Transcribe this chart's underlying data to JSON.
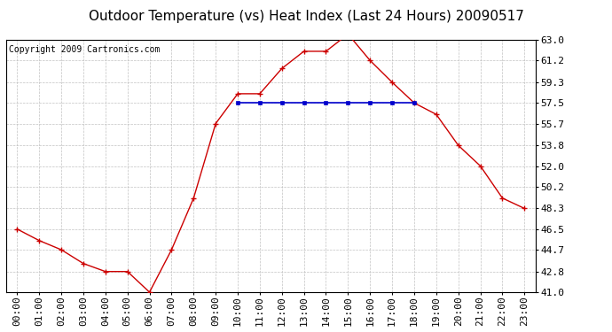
{
  "title": "Outdoor Temperature (vs) Heat Index (Last 24 Hours) 20090517",
  "copyright": "Copyright 2009 Cartronics.com",
  "hours": [
    "00:00",
    "01:00",
    "02:00",
    "03:00",
    "04:00",
    "05:00",
    "06:00",
    "07:00",
    "08:00",
    "09:00",
    "10:00",
    "11:00",
    "12:00",
    "13:00",
    "14:00",
    "15:00",
    "16:00",
    "17:00",
    "18:00",
    "19:00",
    "20:00",
    "21:00",
    "22:00",
    "23:00"
  ],
  "temp": [
    46.5,
    45.5,
    44.7,
    43.5,
    42.8,
    42.8,
    41.0,
    44.7,
    49.2,
    55.7,
    58.3,
    58.3,
    60.5,
    62.0,
    62.0,
    63.5,
    61.2,
    59.3,
    57.5,
    56.5,
    53.8,
    52.0,
    49.2,
    48.3
  ],
  "heat_index": [
    null,
    null,
    null,
    null,
    null,
    null,
    null,
    null,
    null,
    null,
    57.5,
    57.5,
    57.5,
    57.5,
    57.5,
    57.5,
    57.5,
    57.5,
    57.5,
    null,
    null,
    null,
    null,
    null
  ],
  "temp_color": "#cc0000",
  "heat_color": "#0000cc",
  "bg_color": "#ffffff",
  "plot_bg": "#ffffff",
  "grid_color": "#bbbbbb",
  "ylim": [
    41.0,
    63.0
  ],
  "yticks": [
    41.0,
    42.8,
    44.7,
    46.5,
    48.3,
    50.2,
    52.0,
    53.8,
    55.7,
    57.5,
    59.3,
    61.2,
    63.0
  ],
  "title_fontsize": 11,
  "copyright_fontsize": 7,
  "tick_fontsize": 8
}
